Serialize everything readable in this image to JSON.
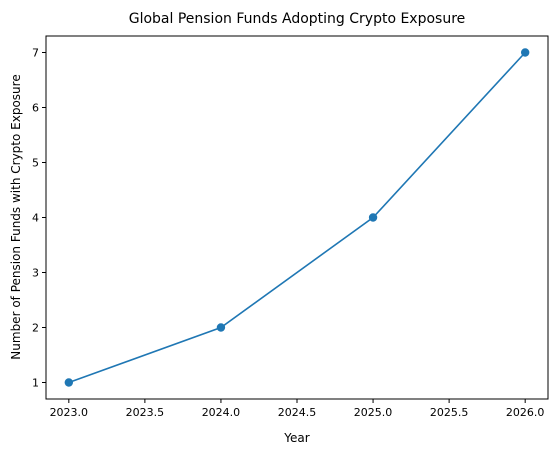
{
  "chart_data": {
    "type": "line",
    "title": "Global Pension Funds Adopting Crypto Exposure",
    "xlabel": "Year",
    "ylabel": "Number of Pension Funds with Crypto Exposure",
    "x": [
      2023,
      2024,
      2025,
      2026
    ],
    "series": [
      {
        "values": [
          1,
          2,
          4,
          7
        ],
        "color": "#1f77b4",
        "marker": "circle"
      }
    ],
    "xlim": [
      2022.85,
      2026.15
    ],
    "ylim": [
      0.7,
      7.3
    ],
    "x_ticks": [
      "2023.0",
      "2023.5",
      "2024.0",
      "2024.5",
      "2025.0",
      "2025.5",
      "2026.0"
    ],
    "y_ticks": [
      "1",
      "2",
      "3",
      "4",
      "5",
      "6",
      "7"
    ],
    "grid": false,
    "legend": "none"
  }
}
